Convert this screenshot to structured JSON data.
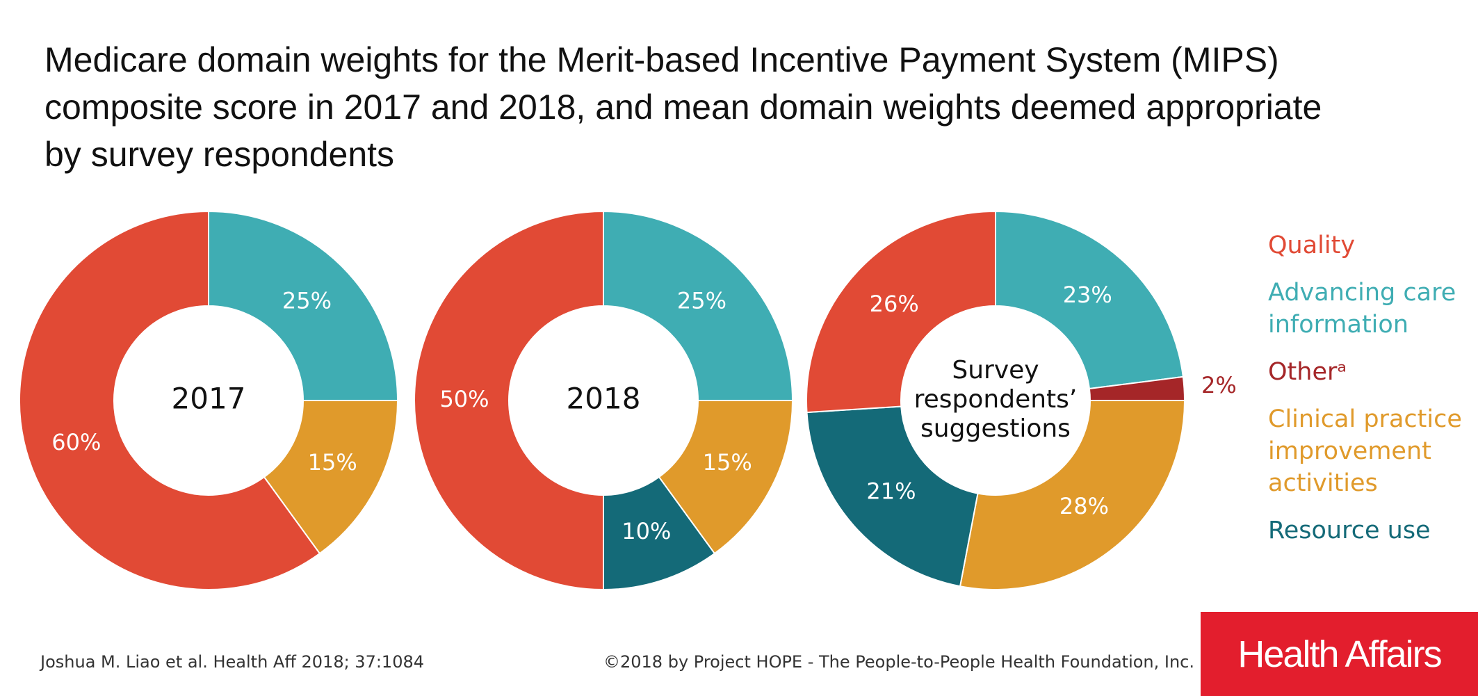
{
  "title_lines": [
    "Medicare domain weights for the Merit-based Incentive Payment System (MIPS)",
    "composite score in 2017 and 2018, and mean domain weights deemed appropriate",
    "by survey respondents"
  ],
  "colors": {
    "quality": "#e14a35",
    "advancing": "#3fadb3",
    "other": "#a52628",
    "clinical": "#e09a2b",
    "resource": "#146a78"
  },
  "legend": [
    {
      "key": "quality",
      "lines": [
        "Quality"
      ]
    },
    {
      "key": "advancing",
      "lines": [
        "Advancing care",
        "information"
      ]
    },
    {
      "key": "other",
      "lines": [
        "Otherᵃ"
      ]
    },
    {
      "key": "clinical",
      "lines": [
        "Clinical practice",
        "improvement",
        "activities"
      ]
    },
    {
      "key": "resource",
      "lines": [
        "Resource use"
      ]
    }
  ],
  "chart_data": [
    {
      "type": "pie",
      "center_label": [
        "2017"
      ],
      "categories": [
        "Advancing care information",
        "Clinical practice improvement activities",
        "Quality"
      ],
      "keys": [
        "advancing",
        "clinical",
        "quality"
      ],
      "values": [
        25,
        15,
        60
      ],
      "labels": [
        "25%",
        "15%",
        "60%"
      ]
    },
    {
      "type": "pie",
      "center_label": [
        "2018"
      ],
      "categories": [
        "Advancing care information",
        "Clinical practice improvement activities",
        "Resource use",
        "Quality"
      ],
      "keys": [
        "advancing",
        "clinical",
        "resource",
        "quality"
      ],
      "values": [
        25,
        15,
        10,
        50
      ],
      "labels": [
        "25%",
        "15%",
        "10%",
        "50%"
      ]
    },
    {
      "type": "pie",
      "center_label": [
        "Survey",
        "respondents’",
        "suggestions"
      ],
      "categories": [
        "Advancing care information",
        "Other",
        "Clinical practice improvement activities",
        "Resource use",
        "Quality"
      ],
      "keys": [
        "advancing",
        "other",
        "clinical",
        "resource",
        "quality"
      ],
      "values": [
        23,
        2,
        28,
        21,
        26
      ],
      "labels": [
        "23%",
        "2%",
        "28%",
        "21%",
        "26%"
      ]
    }
  ],
  "footer": {
    "citation": "Joshua M. Liao et al. Health Aff 2018; 37:1084",
    "copyright": "©2018 by Project HOPE - The People-to-People Health Foundation, Inc.",
    "logo": "Health Affairs"
  }
}
